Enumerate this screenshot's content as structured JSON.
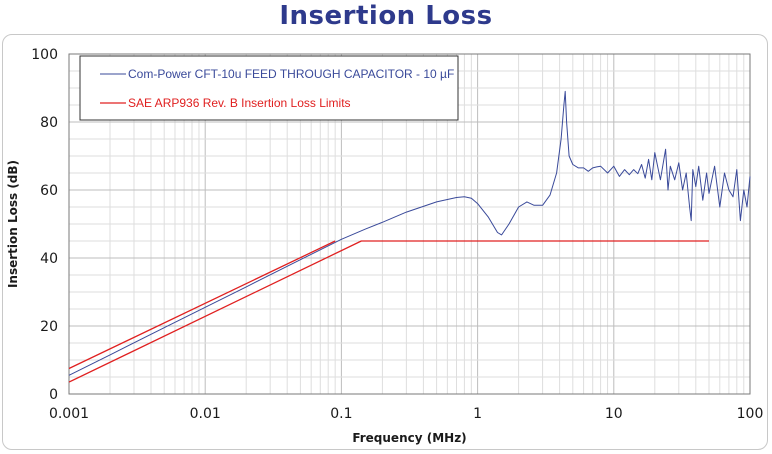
{
  "chart_data": {
    "type": "line",
    "title": "Insertion Loss",
    "xlabel": "Frequency (MHz)",
    "ylabel": "Insertion Loss (dB)",
    "xscale": "log",
    "xlim": [
      0.001,
      100
    ],
    "ylim": [
      0,
      100
    ],
    "x_ticks": [
      "0.001",
      "0.01",
      "0.1",
      "1",
      "10",
      "100"
    ],
    "y_ticks": [
      "0",
      "20",
      "40",
      "60",
      "80",
      "100"
    ],
    "grid": true,
    "legend": "top-left",
    "series": [
      {
        "name": "Com-Power CFT-10u FEED THROUGH CAPACITOR - 10 µF",
        "color": "#3a4a9a",
        "x": [
          0.001,
          0.002,
          0.005,
          0.01,
          0.02,
          0.05,
          0.1,
          0.15,
          0.2,
          0.3,
          0.5,
          0.7,
          0.8,
          0.9,
          1.0,
          1.2,
          1.4,
          1.5,
          1.7,
          2.0,
          2.3,
          2.6,
          3.0,
          3.4,
          3.8,
          4.1,
          4.3,
          4.4,
          4.5,
          4.7,
          5.0,
          5.5,
          6.0,
          6.5,
          7.0,
          7.5,
          8.0,
          9.0,
          10,
          11,
          12,
          13,
          14,
          15,
          16,
          17,
          18,
          19,
          20,
          22,
          24,
          25,
          26,
          28,
          30,
          32,
          34,
          36,
          37,
          38,
          40,
          42,
          45,
          48,
          50,
          55,
          60,
          65,
          70,
          75,
          80,
          85,
          90,
          95,
          100
        ],
        "y": [
          5.5,
          11.5,
          19.5,
          25.5,
          31.5,
          39.5,
          45.5,
          48.5,
          50.5,
          53.5,
          56.5,
          57.8,
          58.0,
          57.6,
          56.0,
          52.0,
          47.5,
          46.8,
          50.0,
          55.0,
          56.5,
          55.5,
          55.5,
          58.5,
          65.0,
          75.0,
          85.0,
          89.0,
          80.0,
          70.0,
          67.5,
          66.5,
          66.5,
          65.5,
          66.5,
          66.8,
          67.0,
          65.0,
          67.0,
          64.0,
          66.0,
          64.5,
          66.0,
          64.8,
          67.5,
          63.5,
          69.0,
          63.0,
          71.0,
          63.0,
          72.0,
          60.0,
          67.0,
          63.0,
          68.0,
          60.0,
          65.0,
          55.0,
          51.0,
          66.0,
          61.0,
          67.0,
          57.0,
          65.0,
          59.0,
          67.0,
          55.0,
          65.0,
          60.0,
          58.0,
          66.0,
          51.0,
          60.0,
          55.0,
          64.0
        ]
      },
      {
        "name": "SAE ARP936 Rev. B Insertion Loss Limits",
        "color": "#e02020",
        "x": [
          0.001,
          0.14,
          50
        ],
        "y": [
          3.5,
          45,
          45
        ]
      }
    ],
    "extra_lines": [
      {
        "series": "SAE ARP936 Rev. B Insertion Loss Limits",
        "color": "#e02020",
        "x": [
          0.001,
          0.09
        ],
        "y": [
          7.5,
          45
        ]
      }
    ]
  }
}
